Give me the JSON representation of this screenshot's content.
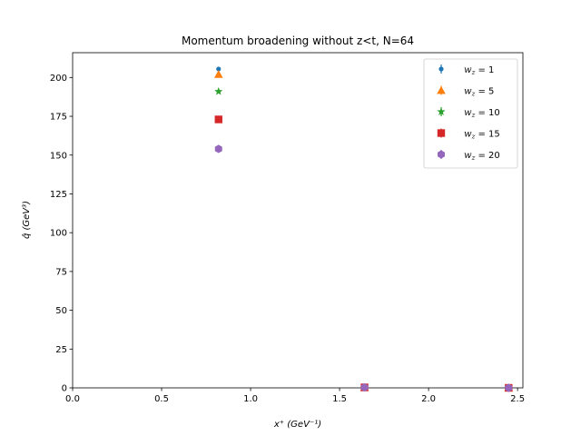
{
  "chart_data": {
    "type": "scatter",
    "title": "Momentum broadening without z<t, N=64",
    "xlabel": "x⁺ (GeV⁻¹)",
    "ylabel": "q̂ (GeV³)",
    "xlim": [
      0,
      2.53
    ],
    "ylim": [
      0,
      216
    ],
    "xticks": [
      "0.0",
      "0.5",
      "1.0",
      "1.5",
      "2.0",
      "2.5"
    ],
    "xtick_values": [
      0,
      0.5,
      1.0,
      1.5,
      2.0,
      2.5
    ],
    "yticks": [
      "0",
      "25",
      "50",
      "75",
      "100",
      "125",
      "150",
      "175",
      "200"
    ],
    "ytick_values": [
      0,
      25,
      50,
      75,
      100,
      125,
      150,
      175,
      200
    ],
    "grid": false,
    "legend_position": "top-right",
    "series": [
      {
        "name": "w_z = 1",
        "legend_var": "w",
        "legend_sub": "z",
        "legend_val": " = 1",
        "color": "#1f77b4",
        "marker": "point",
        "x": [
          0.82,
          1.64,
          2.45
        ],
        "y": [
          205.5,
          0.3,
          0.0
        ]
      },
      {
        "name": "w_z = 5",
        "legend_var": "w",
        "legend_sub": "z",
        "legend_val": " = 5",
        "color": "#ff7f0e",
        "marker": "triangle",
        "x": [
          0.82,
          1.64,
          2.45
        ],
        "y": [
          202.0,
          0.3,
          0.0
        ]
      },
      {
        "name": "w_z = 10",
        "legend_var": "w",
        "legend_sub": "z",
        "legend_val": " = 10",
        "color": "#2ca02c",
        "marker": "star",
        "x": [
          0.82,
          1.64,
          2.45
        ],
        "y": [
          191.0,
          0.3,
          0.0
        ]
      },
      {
        "name": "w_z = 15",
        "legend_var": "w",
        "legend_sub": "z",
        "legend_val": " = 15",
        "color": "#d62728",
        "marker": "square",
        "x": [
          0.82,
          1.64,
          2.45
        ],
        "y": [
          173.0,
          0.3,
          0.0
        ]
      },
      {
        "name": "w_z = 20",
        "legend_var": "w",
        "legend_sub": "z",
        "legend_val": " = 20",
        "color": "#9467bd",
        "marker": "hexagon",
        "x": [
          0.82,
          1.64,
          2.45
        ],
        "y": [
          154.0,
          0.3,
          0.0
        ]
      }
    ]
  }
}
